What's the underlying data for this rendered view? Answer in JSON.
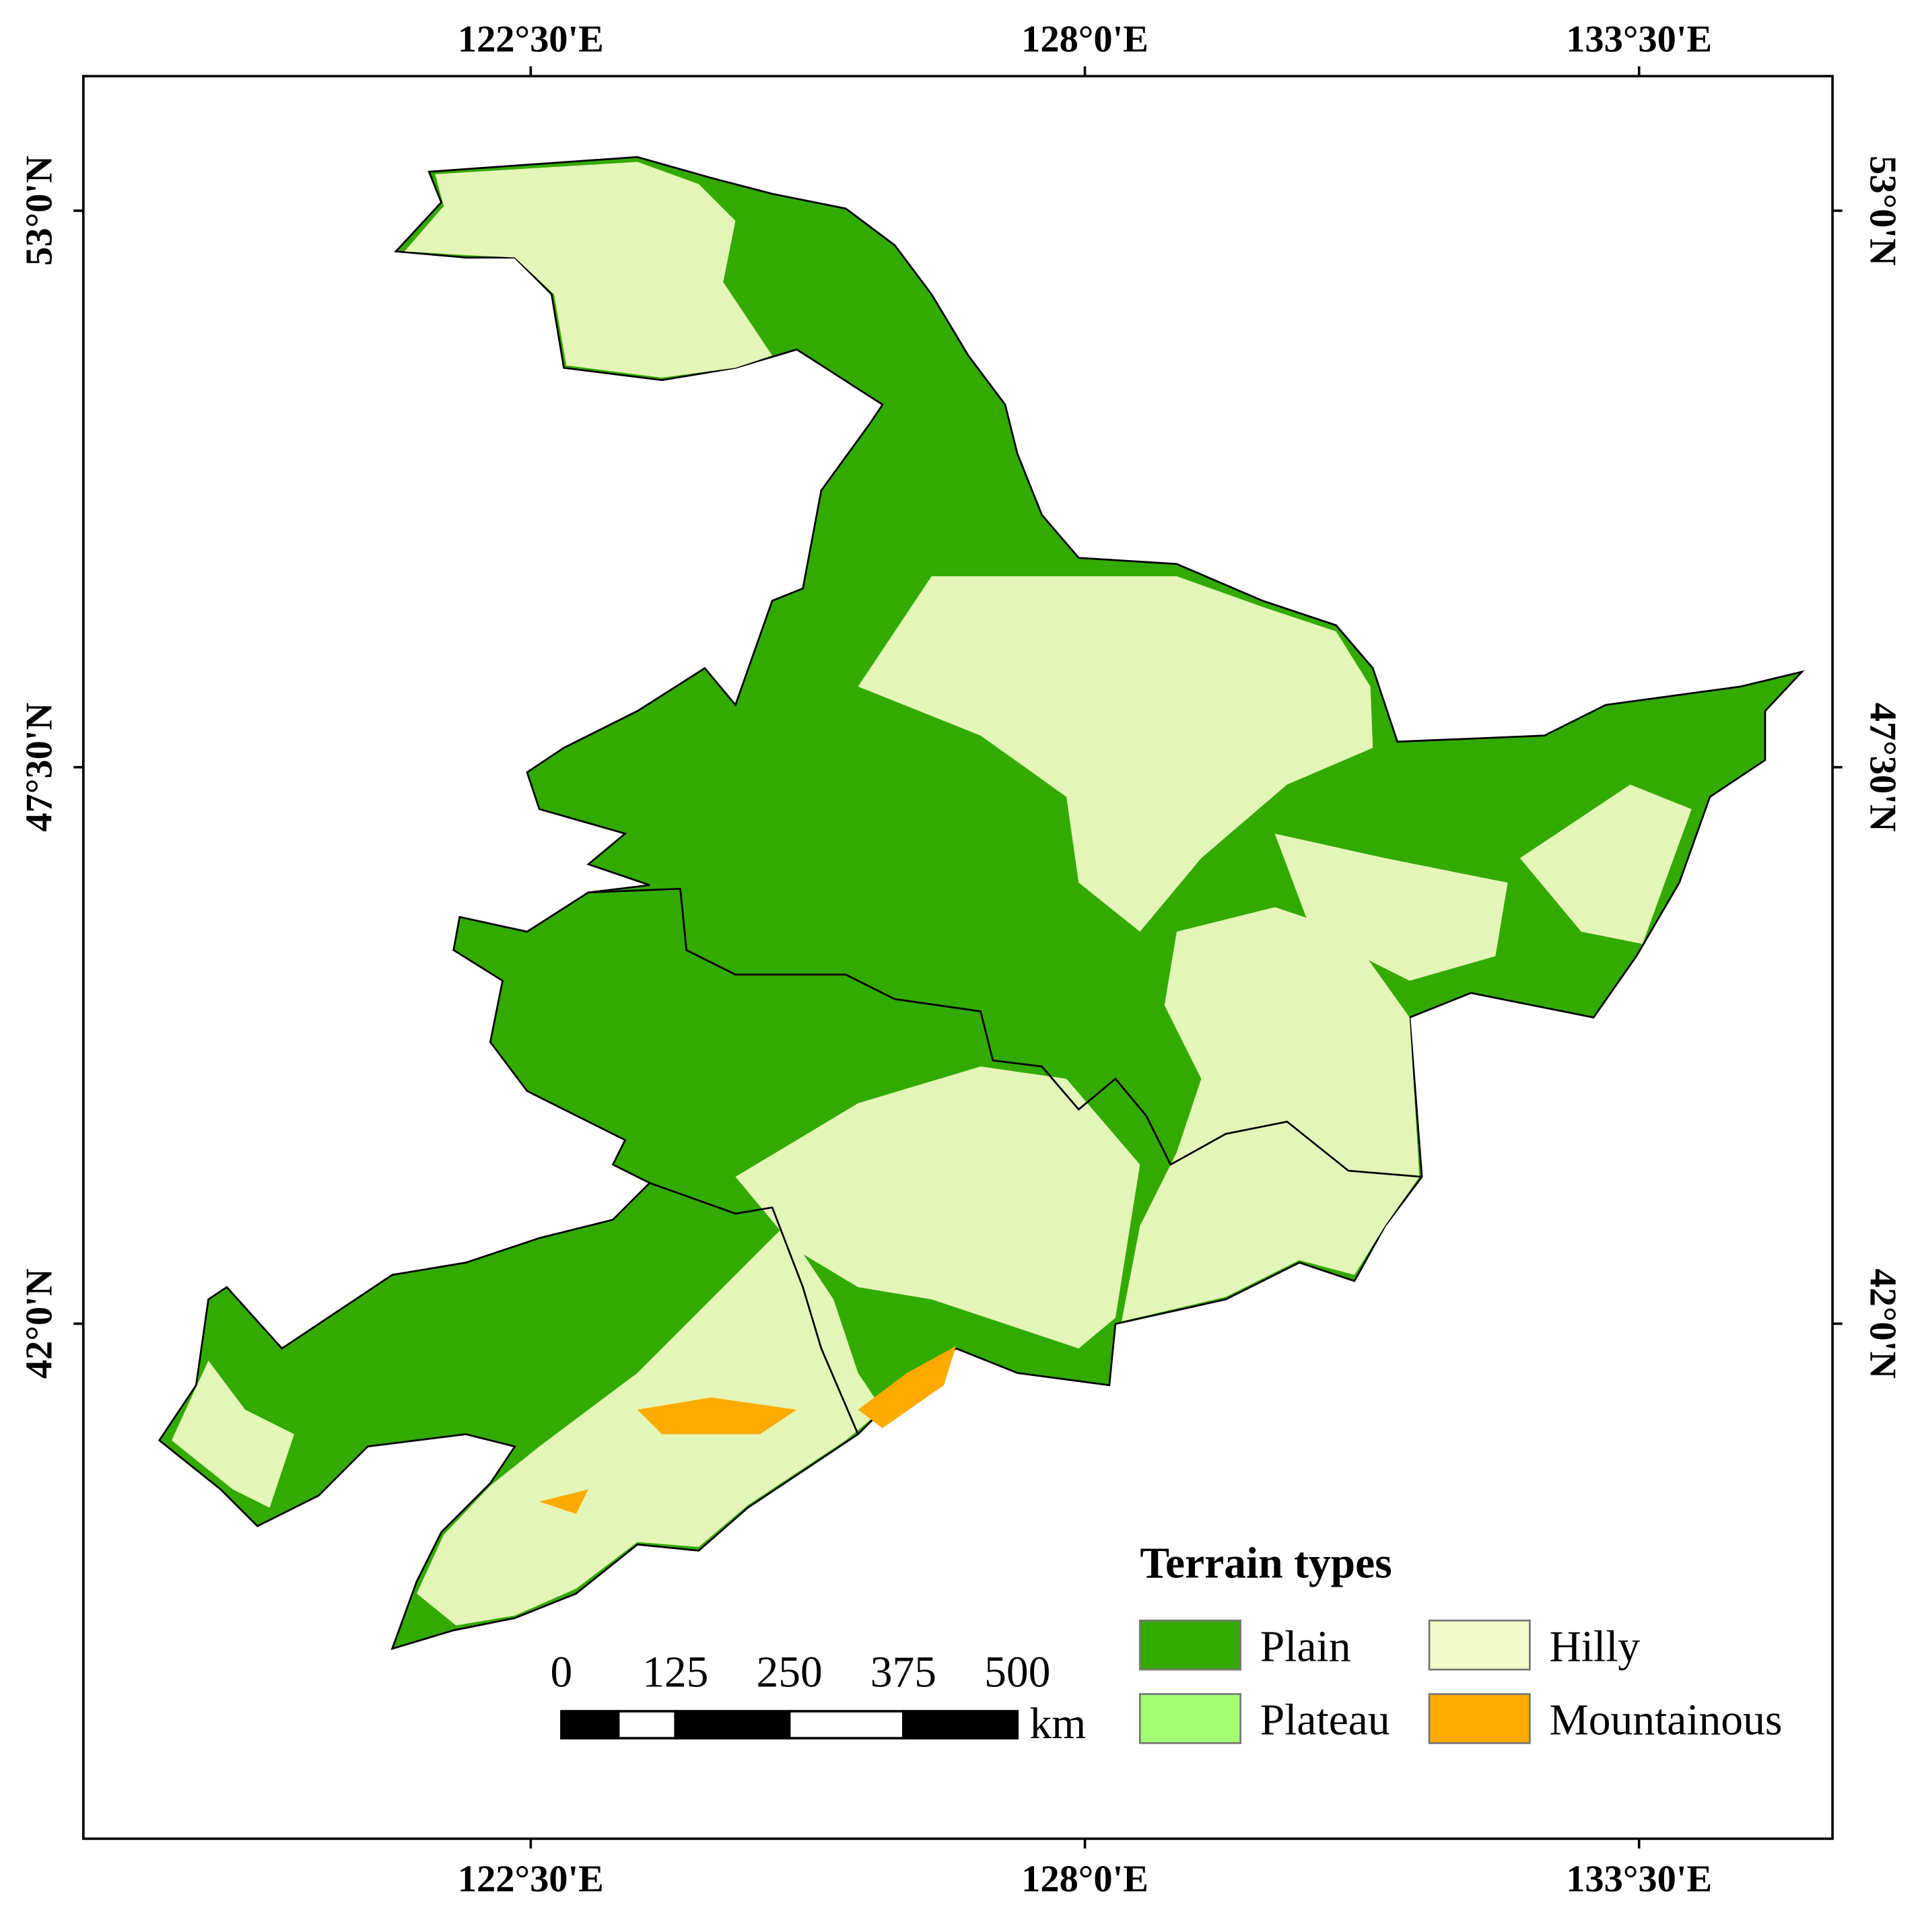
{
  "map": {
    "lonlim": [
      118.06,
      135.42
    ],
    "latlim": [
      36.91,
      54.33
    ],
    "lon_ticks": [
      {
        "value": 122.5,
        "label": "122°30'E"
      },
      {
        "value": 128,
        "label": "128°0'E"
      },
      {
        "value": 133.5,
        "label": "133°30'E"
      }
    ],
    "lat_ticks": [
      {
        "value": 53,
        "label": "53°0'N"
      },
      {
        "value": 47.5,
        "label": "47°30'N"
      },
      {
        "value": 42,
        "label": "42°0'N"
      }
    ],
    "legend": {
      "title": "Terrain types",
      "items": [
        {
          "name": "Plain",
          "color": "#33aa00"
        },
        {
          "name": "Plateau",
          "color": "#a5ff73"
        },
        {
          "name": "Hilly",
          "color": "#f3fcc8"
        },
        {
          "name": "Mountainous",
          "color": "#ffaa00"
        }
      ]
    },
    "scale_bar": {
      "labels": [
        0,
        125,
        250,
        375,
        500
      ],
      "unit": "km"
    }
  }
}
